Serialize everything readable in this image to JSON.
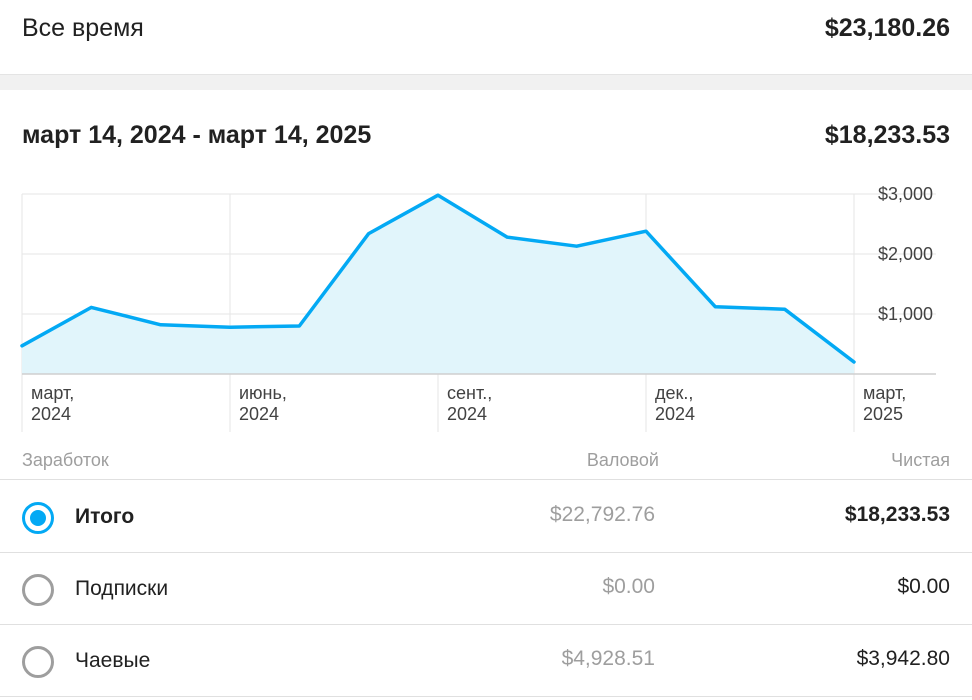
{
  "all_time": {
    "label": "Все время",
    "value": "$23,180.26"
  },
  "period": {
    "label": "март 14, 2024 - март 14, 2025",
    "value": "$18,233.53"
  },
  "colors": {
    "accent": "#03a9f4",
    "area_fill": "#e1f5fb",
    "grid": "#e6e6e6"
  },
  "chart_data": {
    "type": "area",
    "x": [
      "мар 2024",
      "апр 2024",
      "май 2024",
      "июн 2024",
      "июл 2024",
      "авг 2024",
      "сен 2024",
      "окт 2024",
      "ноя 2024",
      "дек 2024",
      "янв 2025",
      "фев 2025",
      "мар 2025"
    ],
    "values": [
      470,
      1110,
      820,
      780,
      800,
      2340,
      2980,
      2280,
      2130,
      2380,
      1120,
      1080,
      200
    ],
    "ylim": [
      0,
      3000
    ],
    "yticks": [
      {
        "value": 1000,
        "label": "$1,000"
      },
      {
        "value": 2000,
        "label": "$2,000"
      },
      {
        "value": 3000,
        "label": "$3,000"
      }
    ],
    "xticks": [
      {
        "index": 0,
        "line1": "март,",
        "line2": "2024"
      },
      {
        "index": 3,
        "line1": "июнь,",
        "line2": "2024"
      },
      {
        "index": 6,
        "line1": "сент.,",
        "line2": "2024"
      },
      {
        "index": 9,
        "line1": "дек.,",
        "line2": "2024"
      },
      {
        "index": 12,
        "line1": "март,",
        "line2": "2025"
      }
    ]
  },
  "table": {
    "headers": {
      "name": "Заработок",
      "gross": "Валовой",
      "net": "Чистая"
    },
    "rows": [
      {
        "name": "Итого",
        "gross": "$22,792.76",
        "net": "$18,233.53",
        "selected": true
      },
      {
        "name": "Подписки",
        "gross": "$0.00",
        "net": "$0.00",
        "selected": false
      },
      {
        "name": "Чаевые",
        "gross": "$4,928.51",
        "net": "$3,942.80",
        "selected": false
      }
    ]
  }
}
